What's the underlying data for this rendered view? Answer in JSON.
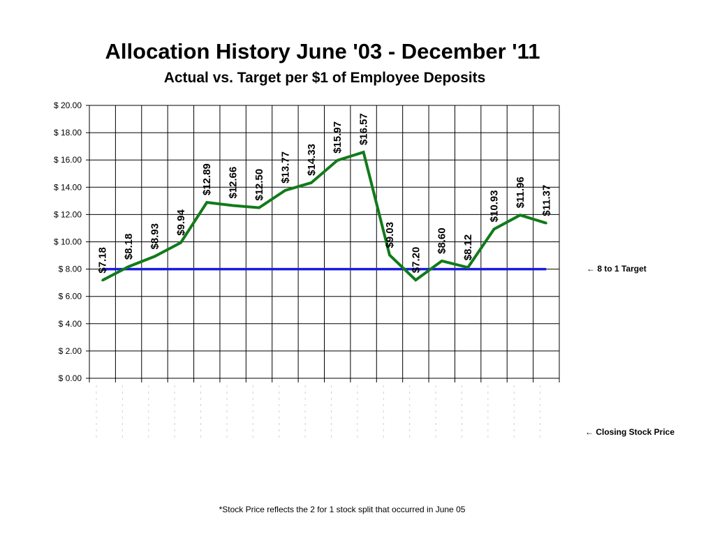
{
  "chart_data": {
    "type": "line",
    "title": "Allocation History June '03 - December '11",
    "subtitle": "Actual vs. Target per $1 of Employee Deposits",
    "ylim": [
      0,
      20
    ],
    "yticks": [
      "$ 0.00",
      "$ 2.00",
      "$ 4.00",
      "$ 6.00",
      "$ 8.00",
      "$ 10.00",
      "$ 12.00",
      "$ 14.00",
      "$ 16.00",
      "$ 18.00",
      "$ 20.00"
    ],
    "grid": true,
    "series": [
      {
        "name": "Closing Stock Price",
        "color": "#127a1a",
        "values": [
          7.18,
          8.18,
          8.93,
          9.94,
          12.89,
          12.66,
          12.5,
          13.77,
          14.33,
          15.97,
          16.57,
          9.03,
          7.2,
          8.6,
          8.12,
          10.93,
          11.96,
          11.37
        ],
        "labels": [
          "$7.18",
          "$8.18",
          "$8.93",
          "$9.94",
          "$12.89",
          "$12.66",
          "$12.50",
          "$13.77",
          "$14.33",
          "$15.97",
          "$16.57",
          "$9.03",
          "$7.20",
          "$8.60",
          "$8.12",
          "$10.93",
          "$11.96",
          "$11.37"
        ]
      },
      {
        "name": "8 to 1 Target",
        "color": "#1a1ae0",
        "value": 8
      }
    ],
    "annotations": {
      "target": "← 8 to 1 Target",
      "price": "← Closing Stock Price"
    },
    "footnote": "*Stock Price reflects the 2 for 1 stock split  that occurred in June 05"
  }
}
